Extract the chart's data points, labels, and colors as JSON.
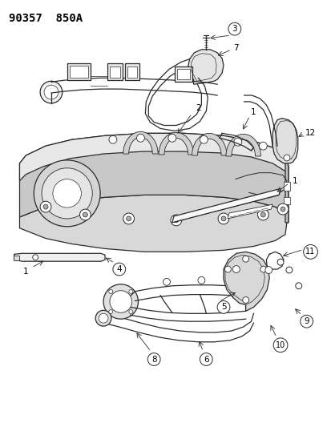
{
  "title": "90357  850A",
  "bg_color": "#ffffff",
  "line_color": "#2a2a2a",
  "label_color": "#000000",
  "title_fontsize": 10,
  "label_fontsize": 7.5,
  "figsize": [
    4.14,
    5.33
  ],
  "dpi": 100
}
